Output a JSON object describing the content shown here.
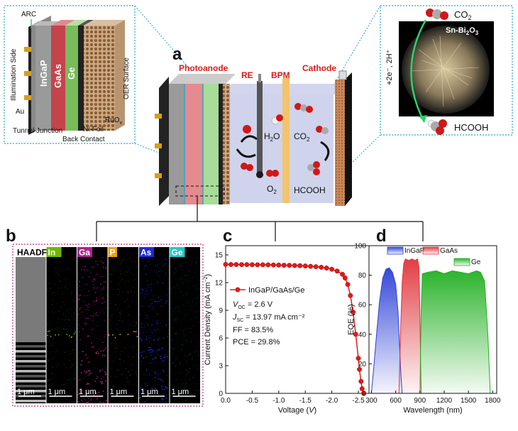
{
  "panels": {
    "a": "a",
    "b": "b",
    "c": "c",
    "d": "d"
  },
  "inset_left": {
    "arc": "ARC",
    "illumination": "Illumination Side",
    "au": "Au",
    "layers": [
      "InGaP",
      "GaAs",
      "Ge"
    ],
    "oer": "OER Surface",
    "ruox": "RuOx",
    "nifoil": "Ni-Foil",
    "tunnel": "Tunnel Junction",
    "back": "Back Contact"
  },
  "inset_right": {
    "co2": "CO2",
    "material": "Sn-Bi2O3",
    "reaction": "+2e⁻, 2H⁺",
    "product": "HCOOH"
  },
  "cell": {
    "photoanode": "Photoanode",
    "re": "RE",
    "bpm": "BPM",
    "cathode": "Cathode",
    "h2o": "H2O",
    "co2": "CO2",
    "o2": "O2",
    "hcooh": "HCOOH"
  },
  "panel_b": {
    "channels": [
      {
        "label": "HAADF",
        "color": "#ffffff",
        "text": "#000000",
        "scale": "1 μm"
      },
      {
        "label": "In",
        "color": "#6fb800",
        "text": "#ffffff",
        "scale": "1 μm"
      },
      {
        "label": "Ga",
        "color": "#b0218f",
        "text": "#ffffff",
        "scale": "1 μm"
      },
      {
        "label": "P",
        "color": "#f0a000",
        "text": "#ffffff",
        "scale": "1 μm"
      },
      {
        "label": "As",
        "color": "#1f2bd6",
        "text": "#ffffff",
        "scale": "1 μm"
      },
      {
        "label": "Ge",
        "color": "#1ec8c8",
        "text": "#ffffff",
        "scale": "1 μm"
      }
    ]
  },
  "chart_data": [
    {
      "type": "line",
      "panel": "c",
      "xlabel": "Voltage (V)",
      "ylabel": "Current Density (mA cm⁻²)",
      "xlim": [
        0.0,
        -2.7
      ],
      "ylim": [
        0,
        16
      ],
      "xticks": [
        "0.0",
        "-0.5",
        "-1.0",
        "-1.5",
        "-2.0",
        "-2.5"
      ],
      "xtick_values": [
        0.0,
        -0.5,
        -1.0,
        -1.5,
        -2.0,
        -2.5
      ],
      "yticks": [
        "0",
        "3",
        "6",
        "9",
        "12",
        "15"
      ],
      "ytick_values": [
        0,
        3,
        6,
        9,
        12,
        15
      ],
      "series": [
        {
          "name": "InGaP/GaAs/Ge",
          "color": "#e01b1b",
          "x": [
            0.0,
            -0.1,
            -0.2,
            -0.3,
            -0.4,
            -0.5,
            -0.6,
            -0.7,
            -0.8,
            -0.9,
            -1.0,
            -1.1,
            -1.2,
            -1.3,
            -1.4,
            -1.5,
            -1.6,
            -1.7,
            -1.8,
            -1.9,
            -2.0,
            -2.1,
            -2.2,
            -2.25,
            -2.3,
            -2.35,
            -2.4,
            -2.45,
            -2.5,
            -2.52,
            -2.55,
            -2.57,
            -2.6
          ],
          "y": [
            13.97,
            13.96,
            13.96,
            13.95,
            13.95,
            13.94,
            13.93,
            13.93,
            13.92,
            13.91,
            13.9,
            13.88,
            13.87,
            13.85,
            13.83,
            13.8,
            13.76,
            13.72,
            13.66,
            13.58,
            13.45,
            13.25,
            12.9,
            12.5,
            11.8,
            10.6,
            8.8,
            6.4,
            3.8,
            2.6,
            1.3,
            0.5,
            0.0
          ]
        }
      ],
      "annotations": {
        "voc": [
          "V",
          "OC",
          " = 2.6 V"
        ],
        "jsc": [
          "J",
          "SC",
          " = 13.97 mA cm⁻²"
        ],
        "ff": "FF = 83.5%",
        "pce": "PCE = 29.8%"
      }
    },
    {
      "type": "area",
      "panel": "d",
      "xlabel": "Wavelength (nm)",
      "ylabel": "EQE (%)",
      "xlim": [
        270,
        1850
      ],
      "ylim": [
        0,
        100
      ],
      "xticks": [
        "300",
        "600",
        "900",
        "1200",
        "1500",
        "1800"
      ],
      "xtick_values": [
        300,
        600,
        900,
        1200,
        1500,
        1800
      ],
      "yticks": [
        "0",
        "20",
        "40",
        "60",
        "80",
        "100"
      ],
      "ytick_values": [
        0,
        20,
        40,
        60,
        80,
        100
      ],
      "series": [
        {
          "name": "InGaP",
          "color": "#2b3fd6",
          "x": [
            300,
            330,
            360,
            400,
            440,
            480,
            520,
            560,
            600,
            630,
            660,
            680
          ],
          "y": [
            0,
            18,
            38,
            62,
            78,
            84,
            85,
            82,
            74,
            55,
            18,
            0
          ]
        },
        {
          "name": "GaAs",
          "color": "#e0343a",
          "x": [
            640,
            660,
            680,
            700,
            720,
            760,
            800,
            840,
            870,
            890,
            905,
            915
          ],
          "y": [
            0,
            40,
            75,
            88,
            91,
            90,
            91,
            90,
            91,
            85,
            35,
            0
          ]
        },
        {
          "name": "Ge",
          "color": "#22b022",
          "x": [
            900,
            915,
            930,
            1000,
            1100,
            1200,
            1300,
            1400,
            1500,
            1600,
            1650,
            1700,
            1740,
            1770
          ],
          "y": [
            0,
            55,
            81,
            82,
            83,
            81,
            83,
            82,
            81,
            83,
            82,
            76,
            40,
            0
          ]
        }
      ]
    }
  ]
}
